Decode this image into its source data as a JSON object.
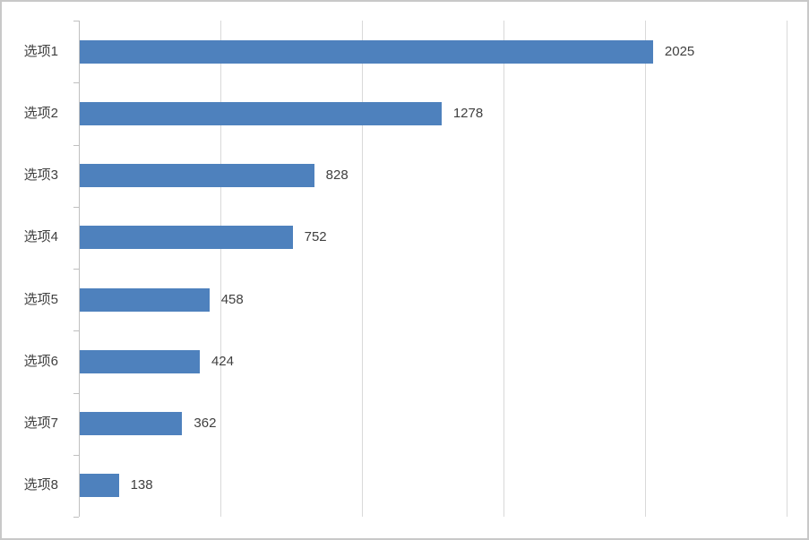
{
  "chart": {
    "bar_color": "#4E81BD",
    "gridline_color": "#d9d9d9",
    "axis_color": "#c0c0c0",
    "text_color": "#404040",
    "border_color": "#c8c8c8",
    "background_color": "#ffffff"
  },
  "chart_data": {
    "type": "bar",
    "orientation": "horizontal",
    "title": "",
    "xlabel": "",
    "ylabel": "",
    "categories": [
      "选项1",
      "选项2",
      "选项3",
      "选项4",
      "选项5",
      "选项6",
      "选项7",
      "选项8"
    ],
    "values": [
      2025,
      1278,
      828,
      752,
      458,
      424,
      362,
      138
    ],
    "data_labels": [
      "2025",
      "1278",
      "828",
      "752",
      "458",
      "424",
      "362",
      "138"
    ],
    "xlim": [
      0,
      2500
    ],
    "grid_interval": 500,
    "grid": true,
    "legend": false,
    "show_data_labels": true
  }
}
